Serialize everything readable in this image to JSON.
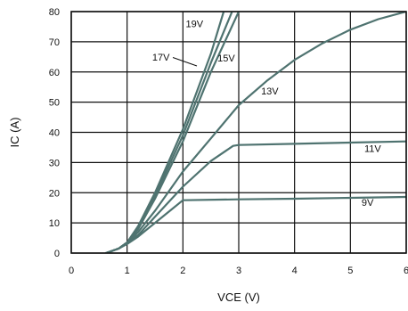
{
  "chart_data": {
    "type": "line",
    "xlabel": "VCE (V)",
    "ylabel": "IC (A)",
    "xlim": [
      0,
      6
    ],
    "ylim": [
      0,
      80
    ],
    "x_ticks": [
      "0",
      "1",
      "2",
      "3",
      "4",
      "5",
      "6"
    ],
    "y_ticks": [
      "0",
      "10",
      "20",
      "30",
      "40",
      "50",
      "60",
      "70",
      "80"
    ],
    "grid": true,
    "line_color": "#4f7370",
    "series": [
      {
        "name": "19V",
        "points": [
          [
            0.62,
            0
          ],
          [
            0.85,
            1.5
          ],
          [
            1.0,
            3.5
          ],
          [
            1.2,
            9
          ],
          [
            1.5,
            20
          ],
          [
            2.0,
            41
          ],
          [
            2.5,
            66
          ],
          [
            2.73,
            80
          ]
        ]
      },
      {
        "name": "17V",
        "points": [
          [
            0.62,
            0
          ],
          [
            0.85,
            1.5
          ],
          [
            1.0,
            3.5
          ],
          [
            1.2,
            8.5
          ],
          [
            1.5,
            19
          ],
          [
            2.0,
            39
          ],
          [
            2.5,
            63
          ],
          [
            2.88,
            80
          ]
        ]
      },
      {
        "name": "15V",
        "points": [
          [
            0.62,
            0
          ],
          [
            0.85,
            1.5
          ],
          [
            1.0,
            3.5
          ],
          [
            1.2,
            8
          ],
          [
            1.5,
            18
          ],
          [
            2.0,
            37
          ],
          [
            2.5,
            60
          ],
          [
            3.0,
            80
          ]
        ]
      },
      {
        "name": "13V",
        "points": [
          [
            0.62,
            0
          ],
          [
            0.85,
            1.5
          ],
          [
            1.0,
            3.5
          ],
          [
            1.2,
            7
          ],
          [
            1.5,
            14
          ],
          [
            2.0,
            27
          ],
          [
            2.5,
            38
          ],
          [
            3.0,
            49
          ],
          [
            3.5,
            57
          ],
          [
            4.0,
            64
          ],
          [
            4.5,
            69.5
          ],
          [
            5.0,
            74
          ],
          [
            5.5,
            77.5
          ],
          [
            6.0,
            80
          ]
        ]
      },
      {
        "name": "11V",
        "points": [
          [
            0.62,
            0
          ],
          [
            0.85,
            1.5
          ],
          [
            1.0,
            3.5
          ],
          [
            1.2,
            6
          ],
          [
            1.5,
            12
          ],
          [
            2.0,
            22
          ],
          [
            2.5,
            30.5
          ],
          [
            2.9,
            35.5
          ],
          [
            3.0,
            35.8
          ],
          [
            4.0,
            36.2
          ],
          [
            5.0,
            36.6
          ],
          [
            6.0,
            37
          ]
        ]
      },
      {
        "name": "9V",
        "points": [
          [
            0.62,
            0
          ],
          [
            0.85,
            1.5
          ],
          [
            1.0,
            3
          ],
          [
            1.2,
            5.5
          ],
          [
            1.5,
            10
          ],
          [
            1.8,
            14.5
          ],
          [
            2.0,
            17.5
          ],
          [
            3.0,
            17.8
          ],
          [
            4.0,
            18
          ],
          [
            5.0,
            18.3
          ],
          [
            6.0,
            18.6
          ]
        ]
      }
    ],
    "labels": [
      {
        "text": "19V",
        "x": 2.05,
        "y": 74.8
      },
      {
        "text": "17V",
        "x": 1.45,
        "y": 63.7
      },
      {
        "text": "15V",
        "x": 2.62,
        "y": 63.5
      },
      {
        "text": "13V",
        "x": 3.4,
        "y": 52.6
      },
      {
        "text": "11V",
        "x": 5.25,
        "y": 33.5
      },
      {
        "text": "9V",
        "x": 5.2,
        "y": 15.6
      }
    ]
  }
}
